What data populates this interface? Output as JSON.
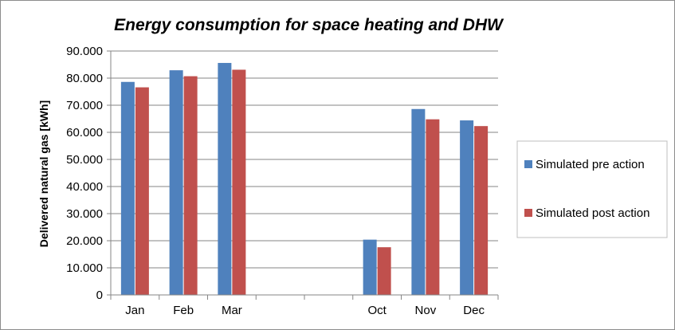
{
  "chart_data": {
    "type": "bar",
    "title": "Energy consumption for space heating and DHW",
    "ylabel": "Delivered natural gas [kWh]",
    "xlabel": "",
    "categories": [
      "Jan",
      "Feb",
      "Mar",
      "",
      "",
      "Oct",
      "Nov",
      "Dec"
    ],
    "series": [
      {
        "name": "Simulated pre action",
        "color": "#4f81bd",
        "values": [
          78600,
          82900,
          85600,
          null,
          null,
          20400,
          68600,
          64400
        ]
      },
      {
        "name": "Simulated post action",
        "color": "#c0504d",
        "values": [
          76600,
          80700,
          83100,
          null,
          null,
          17600,
          64800,
          62300
        ]
      }
    ],
    "ylim": [
      0,
      90000
    ],
    "yticks": [
      0,
      10000,
      20000,
      30000,
      40000,
      50000,
      60000,
      70000,
      80000,
      90000
    ],
    "ytick_labels": [
      "0",
      "10.000",
      "20.000",
      "30.000",
      "40.000",
      "50.000",
      "60.000",
      "70.000",
      "80.000",
      "90.000"
    ],
    "grid": true,
    "legend_position": "right"
  }
}
